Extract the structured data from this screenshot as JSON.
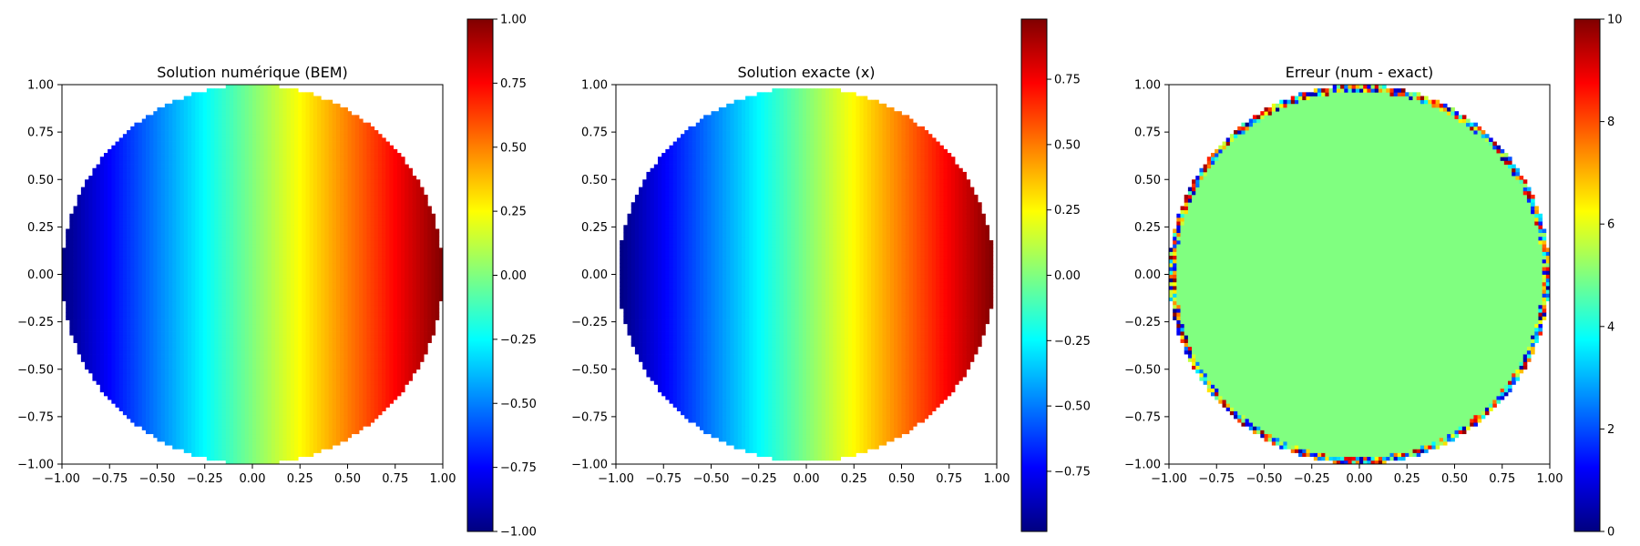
{
  "chart_data": [
    {
      "type": "heatmap",
      "title": "Solution numérique (BEM)",
      "xlabel": "",
      "ylabel": "",
      "xlim": [
        -1.0,
        1.0
      ],
      "ylim": [
        -1.0,
        1.0
      ],
      "x_ticks": [
        "−1.00",
        "−0.75",
        "−0.50",
        "−0.25",
        "0.00",
        "0.25",
        "0.50",
        "0.75",
        "1.00"
      ],
      "y_ticks": [
        "−1.00",
        "−0.75",
        "−0.50",
        "−0.25",
        "0.00",
        "0.25",
        "0.50",
        "0.75",
        "1.00"
      ],
      "field": "u(x,y) = x inside unit disk",
      "colormap": "jet",
      "clim": [
        -1.0,
        1.0
      ],
      "colorbar_ticks": [
        "−1.00",
        "−0.75",
        "−0.50",
        "−0.25",
        "0.00",
        "0.25",
        "0.50",
        "0.75",
        "1.00"
      ],
      "grid_n": 100,
      "boundary_noise": false,
      "extends_to_edge": true
    },
    {
      "type": "heatmap",
      "title": "Solution exacte (x)",
      "xlabel": "",
      "ylabel": "",
      "xlim": [
        -1.0,
        1.0
      ],
      "ylim": [
        -1.0,
        1.0
      ],
      "x_ticks": [
        "−1.00",
        "−0.75",
        "−0.50",
        "−0.25",
        "0.00",
        "0.25",
        "0.50",
        "0.75",
        "1.00"
      ],
      "y_ticks": [
        "−1.00",
        "−0.75",
        "−0.50",
        "−0.25",
        "0.00",
        "0.25",
        "0.50",
        "0.75",
        "1.00"
      ],
      "field": "u(x,y) = x inside unit disk",
      "colormap": "jet",
      "clim": [
        -0.98,
        0.98
      ],
      "colorbar_ticks": [
        "−0.75",
        "−0.50",
        "−0.25",
        "0.00",
        "0.25",
        "0.50",
        "0.75"
      ],
      "grid_n": 100,
      "boundary_noise": false,
      "extends_to_edge": false
    },
    {
      "type": "heatmap",
      "title": "Erreur (num - exact)",
      "xlabel": "",
      "ylabel": "",
      "xlim": [
        -1.0,
        1.0
      ],
      "ylim": [
        -1.0,
        1.0
      ],
      "x_ticks": [
        "−1.00",
        "−0.75",
        "−0.50",
        "−0.25",
        "0.00",
        "0.25",
        "0.50",
        "0.75",
        "1.00"
      ],
      "y_ticks": [
        "−1.00",
        "−0.75",
        "−0.50",
        "−0.25",
        "0.00",
        "0.25",
        "0.50",
        "0.75",
        "1.00"
      ],
      "field": "constant 5 inside disk, noisy values 0-10 on boundary ring",
      "interior_value": 5,
      "colormap": "jet",
      "clim": [
        0,
        10
      ],
      "colorbar_ticks": [
        "0",
        "2",
        "4",
        "6",
        "8",
        "10"
      ],
      "grid_n": 100,
      "boundary_noise": true,
      "extends_to_edge": true
    }
  ]
}
